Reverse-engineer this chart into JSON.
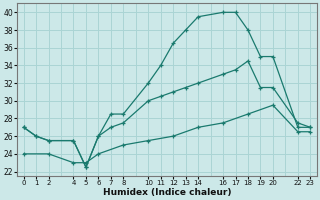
{
  "xlabel": "Humidex (Indice chaleur)",
  "ylabel": "",
  "bg_color": "#cce8e8",
  "line_color": "#1a7a6e",
  "grid_color": "#aad4d4",
  "ylim": [
    21.5,
    41
  ],
  "yticks": [
    22,
    24,
    26,
    28,
    30,
    32,
    34,
    36,
    38,
    40
  ],
  "xlim": [
    -0.5,
    23.5
  ],
  "xtick_positions": [
    0,
    1,
    2,
    4,
    5,
    6,
    7,
    8,
    10,
    11,
    12,
    13,
    14,
    16,
    17,
    18,
    19,
    20,
    22,
    23
  ],
  "xtick_labels": [
    "0",
    "1",
    "2",
    "4",
    "5",
    "6",
    "7",
    "8",
    "10",
    "11",
    "12",
    "13",
    "14",
    "16",
    "17",
    "18",
    "19",
    "20",
    "22",
    "23"
  ],
  "line1_x": [
    0,
    1,
    2,
    4,
    5,
    6,
    7,
    8,
    10,
    11,
    12,
    13,
    14,
    16,
    17,
    18,
    19,
    20,
    22,
    23
  ],
  "line1_y": [
    27.0,
    26.0,
    25.5,
    25.5,
    22.5,
    26.0,
    28.5,
    28.5,
    32.0,
    34.0,
    36.5,
    38.0,
    39.5,
    40.0,
    40.0,
    38.0,
    35.0,
    35.0,
    27.0,
    27.0
  ],
  "line2_x": [
    0,
    1,
    2,
    4,
    5,
    6,
    7,
    8,
    10,
    11,
    12,
    13,
    14,
    16,
    17,
    18,
    19,
    20,
    22,
    23
  ],
  "line2_y": [
    27.0,
    26.0,
    25.5,
    25.5,
    22.5,
    26.0,
    27.0,
    27.5,
    30.0,
    30.5,
    31.0,
    31.5,
    32.0,
    33.0,
    33.5,
    34.5,
    31.5,
    31.5,
    27.5,
    27.0
  ],
  "line3_x": [
    0,
    2,
    4,
    5,
    6,
    8,
    10,
    12,
    14,
    16,
    18,
    20,
    22,
    23
  ],
  "line3_y": [
    24.0,
    24.0,
    23.0,
    23.0,
    24.0,
    25.0,
    25.5,
    26.0,
    27.0,
    27.5,
    28.5,
    29.5,
    26.5,
    26.5
  ]
}
